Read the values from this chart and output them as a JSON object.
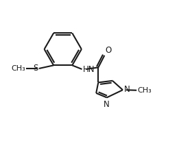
{
  "background_color": "#ffffff",
  "line_color": "#1a1a1a",
  "line_width": 1.5,
  "dbo": 0.11,
  "font_size": 8.5,
  "fig_width": 2.61,
  "fig_height": 2.16,
  "xlim": [
    0,
    10
  ],
  "ylim": [
    0,
    8.3
  ]
}
